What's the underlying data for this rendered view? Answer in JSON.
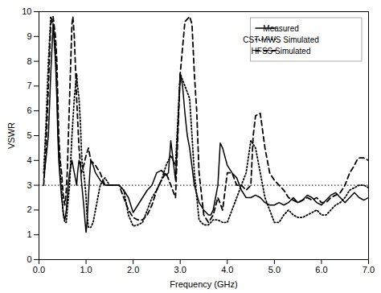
{
  "chart_data": {
    "type": "line",
    "xlabel": "Frequency (GHz)",
    "ylabel": "VSWR",
    "xlim": [
      0,
      7
    ],
    "ylim": [
      0,
      10
    ],
    "xticks": [
      0,
      1,
      2,
      3,
      4,
      5,
      6,
      7
    ],
    "yticks": [
      0,
      1,
      2,
      3,
      4,
      5,
      6,
      7,
      8,
      9,
      10
    ],
    "grid": false,
    "legend": "upper right",
    "reference_line": {
      "y": 3.0,
      "color": "black",
      "line_style": "dotted"
    },
    "series": [
      {
        "name": "Measured",
        "color": "black",
        "line_style": "solid",
        "x": [
          0.1,
          0.2,
          0.25,
          0.3,
          0.35,
          0.38,
          0.4,
          0.42,
          0.45,
          0.48,
          0.5,
          0.52,
          0.55,
          0.58,
          0.6,
          0.62,
          0.65,
          0.68,
          0.7,
          0.72,
          0.75,
          0.78,
          0.8,
          0.82,
          0.85,
          0.88,
          0.9,
          0.92,
          0.95,
          0.98,
          1.0,
          1.02,
          1.05,
          1.08,
          1.1,
          1.15,
          1.2,
          1.3,
          1.4,
          1.5,
          1.6,
          1.7,
          1.8,
          1.9,
          2.0,
          2.1,
          2.2,
          2.3,
          2.4,
          2.5,
          2.6,
          2.65,
          2.7,
          2.75,
          2.8,
          2.85,
          2.9,
          3.0,
          3.05,
          3.1,
          3.15,
          3.2,
          3.3,
          3.4,
          3.5,
          3.6,
          3.65,
          3.7,
          3.75,
          3.8,
          3.85,
          3.9,
          4.0,
          4.1,
          4.2,
          4.3,
          4.4,
          4.5,
          4.6,
          4.7,
          4.8,
          4.9,
          5.0,
          5.1,
          5.2,
          5.3,
          5.4,
          5.5,
          5.6,
          5.7,
          5.8,
          5.9,
          6.0,
          6.1,
          6.2,
          6.3,
          6.4,
          6.5,
          6.6,
          6.7,
          6.8,
          6.9,
          7.0
        ],
        "values": [
          3.2,
          5.0,
          7.5,
          9.5,
          8.0,
          6.5,
          5.0,
          4.0,
          3.2,
          2.5,
          2.2,
          1.8,
          1.6,
          2.0,
          2.5,
          3.0,
          3.5,
          3.8,
          4.0,
          3.8,
          3.5,
          3.2,
          3.0,
          3.5,
          4.0,
          3.8,
          3.2,
          2.8,
          2.2,
          1.5,
          1.1,
          1.5,
          2.5,
          3.5,
          4.0,
          3.8,
          3.5,
          3.2,
          3.0,
          3.0,
          3.0,
          3.0,
          2.8,
          2.5,
          1.9,
          2.2,
          2.5,
          2.8,
          3.0,
          3.5,
          3.6,
          3.5,
          3.4,
          3.5,
          4.8,
          4.0,
          3.2,
          7.5,
          7.0,
          5.9,
          5.0,
          4.5,
          3.0,
          2.3,
          2.0,
          1.8,
          1.8,
          2.0,
          2.5,
          3.0,
          4.7,
          4.5,
          3.8,
          3.5,
          3.3,
          2.8,
          2.5,
          2.5,
          2.6,
          2.5,
          2.3,
          2.2,
          2.2,
          2.3,
          2.2,
          2.3,
          2.5,
          2.3,
          2.4,
          2.6,
          2.5,
          2.3,
          2.2,
          2.4,
          2.6,
          2.7,
          2.5,
          2.3,
          2.5,
          2.7,
          2.5,
          2.4,
          2.5
        ]
      },
      {
        "name": "CST-MWS Simulated",
        "color": "black",
        "line_style": "dotted",
        "x": [
          0.1,
          0.15,
          0.2,
          0.25,
          0.3,
          0.35,
          0.38,
          0.4,
          0.42,
          0.45,
          0.48,
          0.5,
          0.52,
          0.55,
          0.58,
          0.6,
          0.65,
          0.7,
          0.75,
          0.8,
          0.82,
          0.85,
          0.88,
          0.9,
          0.92,
          0.95,
          0.98,
          1.0,
          1.02,
          1.05,
          1.1,
          1.15,
          1.2,
          1.3,
          1.4,
          1.5,
          1.6,
          1.7,
          1.8,
          1.9,
          2.0,
          2.1,
          2.2,
          2.3,
          2.4,
          2.5,
          2.6,
          2.7,
          2.8,
          2.9,
          3.0,
          3.1,
          3.2,
          3.3,
          3.4,
          3.5,
          3.6,
          3.7,
          3.8,
          3.9,
          4.0,
          4.1,
          4.2,
          4.3,
          4.4,
          4.5,
          4.6,
          4.7,
          4.8,
          4.9,
          5.0,
          5.1,
          5.2,
          5.3,
          5.4,
          5.5,
          5.6,
          5.7,
          5.8,
          5.9,
          6.0,
          6.1,
          6.2,
          6.3,
          6.4,
          6.5,
          6.6,
          6.7,
          6.8,
          6.9,
          7.0
        ],
        "values": [
          3.5,
          5.5,
          8.0,
          9.8,
          9.5,
          8.5,
          7.0,
          5.5,
          4.5,
          3.5,
          2.8,
          2.2,
          1.8,
          1.5,
          1.5,
          2.0,
          3.0,
          5.0,
          6.5,
          7.5,
          7.0,
          6.5,
          5.5,
          4.5,
          3.8,
          3.5,
          3.0,
          2.5,
          1.8,
          1.3,
          1.3,
          1.5,
          2.0,
          3.0,
          3.3,
          3.0,
          3.0,
          3.0,
          2.8,
          1.8,
          1.35,
          1.4,
          1.5,
          2.0,
          2.5,
          2.8,
          3.2,
          3.8,
          4.2,
          3.8,
          7.5,
          7.0,
          6.5,
          3.5,
          1.6,
          1.4,
          1.4,
          1.6,
          1.6,
          1.5,
          1.5,
          2.0,
          2.5,
          3.0,
          3.5,
          4.8,
          4.5,
          3.5,
          2.5,
          2.0,
          1.5,
          1.5,
          1.8,
          2.0,
          1.8,
          1.7,
          1.7,
          1.8,
          1.9,
          2.0,
          1.8,
          1.8,
          2.0,
          2.2,
          2.3,
          2.5,
          2.8,
          2.9,
          3.0,
          3.0,
          2.9
        ]
      },
      {
        "name": "HFSS Simulated",
        "color": "black",
        "line_style": "dashed",
        "x": [
          0.1,
          0.15,
          0.2,
          0.25,
          0.3,
          0.35,
          0.38,
          0.4,
          0.42,
          0.45,
          0.48,
          0.5,
          0.52,
          0.55,
          0.58,
          0.6,
          0.65,
          0.7,
          0.72,
          0.75,
          0.78,
          0.8,
          0.85,
          0.9,
          0.95,
          1.0,
          1.05,
          1.1,
          1.2,
          1.3,
          1.4,
          1.5,
          1.6,
          1.7,
          1.8,
          1.9,
          2.0,
          2.1,
          2.2,
          2.3,
          2.4,
          2.5,
          2.6,
          2.7,
          2.8,
          2.9,
          3.0,
          3.1,
          3.2,
          3.25,
          3.3,
          3.35,
          3.4,
          3.5,
          3.6,
          3.7,
          3.8,
          3.9,
          4.0,
          4.1,
          4.2,
          4.3,
          4.4,
          4.5,
          4.55,
          4.6,
          4.7,
          4.8,
          4.9,
          5.0,
          5.1,
          5.2,
          5.3,
          5.4,
          5.5,
          5.6,
          5.7,
          5.8,
          5.9,
          6.0,
          6.1,
          6.2,
          6.3,
          6.4,
          6.5,
          6.6,
          6.7,
          6.75,
          6.8,
          6.9,
          7.0
        ],
        "values": [
          3.0,
          4.5,
          7.0,
          9.5,
          9.8,
          9.0,
          8.0,
          6.5,
          5.0,
          4.0,
          3.5,
          3.0,
          2.5,
          2.2,
          2.8,
          3.5,
          6.5,
          9.5,
          9.8,
          9.0,
          7.5,
          6.5,
          4.5,
          3.5,
          3.8,
          4.2,
          4.5,
          4.0,
          3.8,
          3.5,
          3.0,
          3.0,
          3.0,
          3.0,
          2.5,
          2.0,
          1.7,
          1.6,
          1.6,
          1.8,
          2.2,
          2.8,
          3.2,
          3.5,
          3.0,
          2.5,
          7.5,
          9.6,
          9.8,
          9.5,
          7.5,
          6.0,
          3.5,
          1.8,
          1.5,
          1.8,
          2.5,
          2.0,
          3.5,
          3.5,
          3.0,
          3.0,
          2.8,
          3.0,
          5.0,
          5.8,
          5.9,
          4.5,
          3.5,
          3.2,
          3.0,
          2.8,
          2.5,
          2.4,
          2.3,
          2.4,
          2.5,
          2.4,
          2.5,
          2.3,
          2.3,
          2.5,
          2.6,
          2.7,
          3.0,
          3.5,
          3.8,
          4.0,
          4.1,
          4.1,
          4.0
        ]
      }
    ]
  }
}
